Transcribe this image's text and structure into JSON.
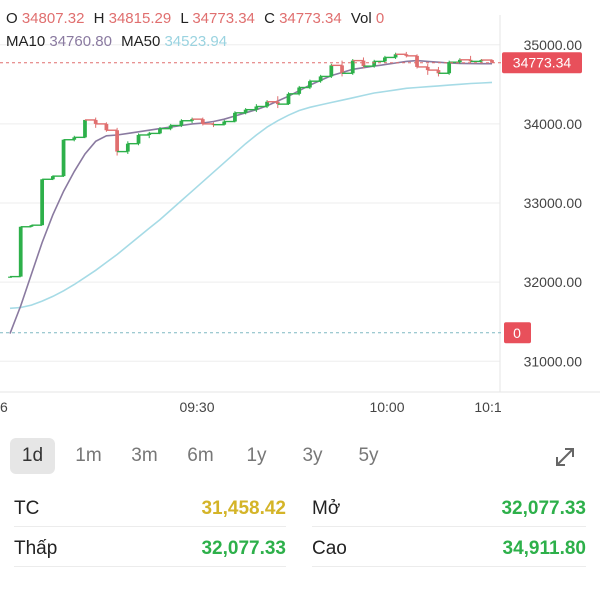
{
  "ohlc": {
    "o_label": "O",
    "o_value": "34807.32",
    "h_label": "H",
    "h_value": "34815.29",
    "l_label": "L",
    "l_value": "34773.34",
    "c_label": "C",
    "c_value": "34773.34",
    "vol_label": "Vol",
    "vol_value": "0"
  },
  "ma": {
    "ma10_label": "MA10",
    "ma10_value": "34760.80",
    "ma50_label": "MA50",
    "ma50_value": "34523.94"
  },
  "price_tag": "34773.34",
  "volume_tag": "0",
  "tabs": [
    "1d",
    "1m",
    "3m",
    "6m",
    "1y",
    "3y",
    "5y"
  ],
  "active_tab": "1d",
  "stats": {
    "tc_label": "TC",
    "tc_value": "31,458.42",
    "open_label": "Mở",
    "open_value": "32,077.33",
    "low_label": "Thấp",
    "low_value": "32,077.33",
    "high_label": "Cao",
    "high_value": "34,911.80"
  },
  "colors": {
    "up": "#2db04a",
    "down": "#e06f6f",
    "ma10": "#8a7aa0",
    "ma50": "#a6dbe6",
    "price_tag_bg": "#e8505b",
    "grid": "#eeeeee"
  },
  "chart_data": {
    "type": "candlestick",
    "x_ticks": [
      "6",
      "09:30",
      "10:00",
      "10:1"
    ],
    "y_ticks": [
      "35000.00",
      "34000.00",
      "33000.00",
      "32000.00",
      "31000.00"
    ],
    "ylim": [
      30700,
      35250
    ],
    "current_price": 34773.34,
    "volume_ref": 31360,
    "candles": [
      [
        32070,
        32070,
        32070,
        32070
      ],
      [
        32070,
        32700,
        32070,
        32700
      ],
      [
        32700,
        32720,
        32700,
        32720
      ],
      [
        32720,
        33300,
        32720,
        33300
      ],
      [
        33300,
        33350,
        33290,
        33340
      ],
      [
        33340,
        33800,
        33330,
        33800
      ],
      [
        33800,
        33850,
        33780,
        33830
      ],
      [
        33830,
        34050,
        33820,
        34050
      ],
      [
        34050,
        34080,
        33950,
        34000
      ],
      [
        34000,
        34020,
        33900,
        33920
      ],
      [
        33920,
        33950,
        33600,
        33650
      ],
      [
        33650,
        33780,
        33620,
        33750
      ],
      [
        33750,
        33880,
        33730,
        33860
      ],
      [
        33860,
        33900,
        33820,
        33880
      ],
      [
        33880,
        33960,
        33870,
        33940
      ],
      [
        33940,
        34000,
        33920,
        33980
      ],
      [
        33980,
        34060,
        33960,
        34040
      ],
      [
        34040,
        34080,
        34010,
        34060
      ],
      [
        34060,
        34080,
        33980,
        34000
      ],
      [
        34000,
        34020,
        33960,
        33990
      ],
      [
        33990,
        34050,
        33980,
        34030
      ],
      [
        34030,
        34160,
        34020,
        34140
      ],
      [
        34140,
        34200,
        34120,
        34180
      ],
      [
        34180,
        34250,
        34150,
        34220
      ],
      [
        34220,
        34300,
        34200,
        34280
      ],
      [
        34280,
        34350,
        34200,
        34250
      ],
      [
        34250,
        34400,
        34240,
        34380
      ],
      [
        34380,
        34480,
        34360,
        34460
      ],
      [
        34460,
        34560,
        34440,
        34540
      ],
      [
        34540,
        34620,
        34520,
        34600
      ],
      [
        34600,
        34760,
        34580,
        34740
      ],
      [
        34740,
        34800,
        34600,
        34640
      ],
      [
        34640,
        34820,
        34620,
        34800
      ],
      [
        34800,
        34840,
        34700,
        34730
      ],
      [
        34730,
        34810,
        34710,
        34790
      ],
      [
        34790,
        34860,
        34770,
        34840
      ],
      [
        34840,
        34900,
        34820,
        34880
      ],
      [
        34880,
        34910,
        34840,
        34860
      ],
      [
        34860,
        34880,
        34700,
        34720
      ],
      [
        34720,
        34760,
        34620,
        34680
      ],
      [
        34680,
        34720,
        34600,
        34640
      ],
      [
        34640,
        34800,
        34620,
        34780
      ],
      [
        34780,
        34830,
        34760,
        34810
      ],
      [
        34810,
        34860,
        34770,
        34790
      ],
      [
        34790,
        34820,
        34770,
        34807
      ],
      [
        34807,
        34815,
        34773,
        34773
      ]
    ],
    "ma10": [
      31350,
      31700,
      32100,
      32500,
      32850,
      33150,
      33400,
      33620,
      33780,
      33850,
      33860,
      33880,
      33900,
      33920,
      33940,
      33960,
      33980,
      34000,
      34010,
      34030,
      34060,
      34100,
      34140,
      34180,
      34230,
      34290,
      34350,
      34420,
      34490,
      34550,
      34610,
      34650,
      34690,
      34710,
      34730,
      34750,
      34770,
      34790,
      34800,
      34790,
      34780,
      34770,
      34765,
      34762,
      34761,
      34760.8
    ],
    "ma50": [
      31670,
      31680,
      31710,
      31760,
      31820,
      31890,
      31970,
      32060,
      32150,
      32250,
      32350,
      32460,
      32570,
      32680,
      32790,
      32910,
      33030,
      33150,
      33270,
      33390,
      33510,
      33630,
      33750,
      33860,
      33960,
      34040,
      34110,
      34170,
      34210,
      34240,
      34270,
      34300,
      34330,
      34360,
      34390,
      34410,
      34430,
      34450,
      34460,
      34470,
      34480,
      34490,
      34500,
      34510,
      34517,
      34523.94
    ]
  }
}
